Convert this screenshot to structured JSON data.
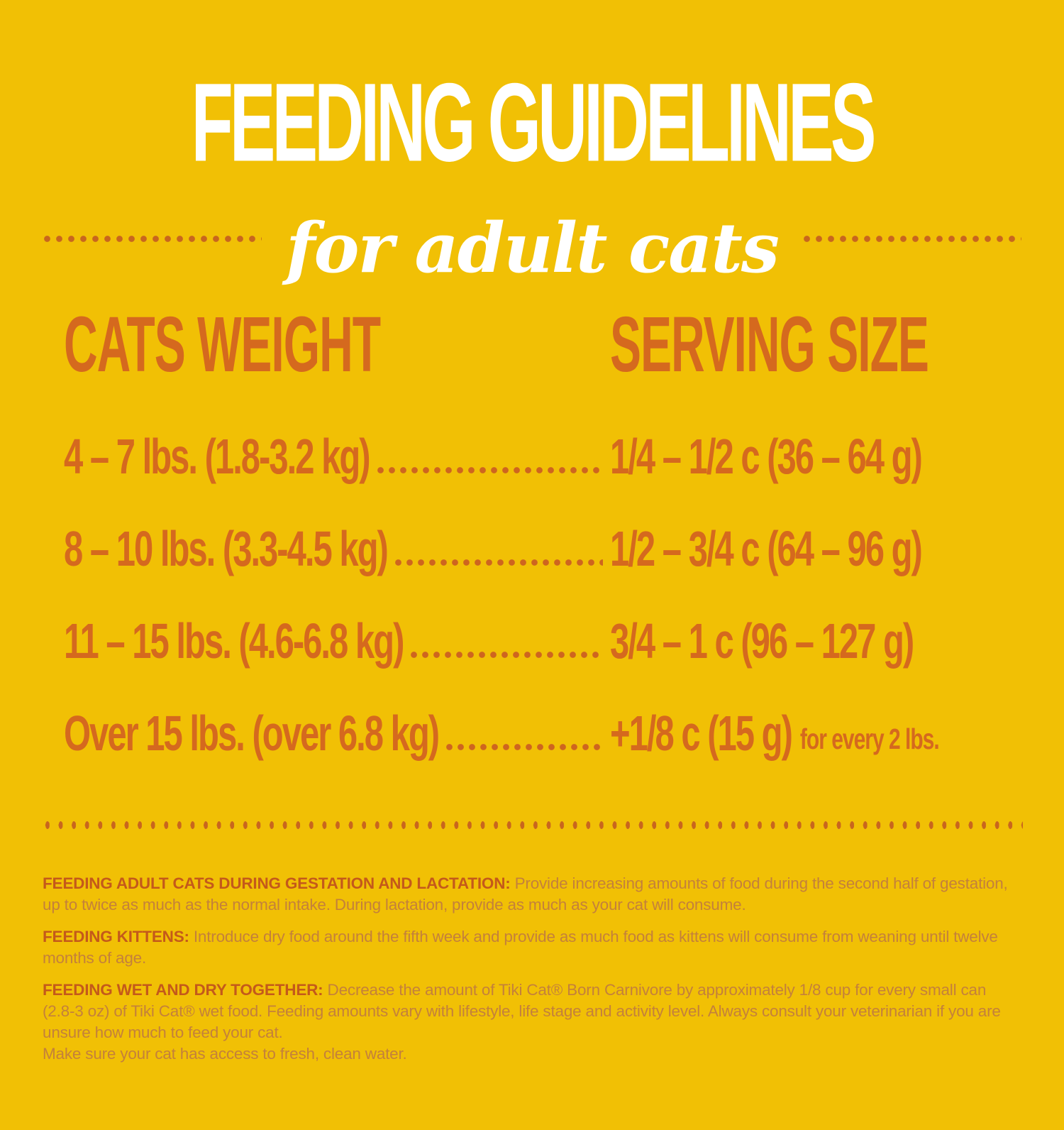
{
  "colors": {
    "background": "#F1C005",
    "title_white": "#FFFFFF",
    "table_orange": "#D5691E",
    "dot_orange": "#C8661E",
    "note_label_orange": "#C4591B",
    "note_body_orange": "#C4803B"
  },
  "header": {
    "title": "FEEDING GUIDELINES",
    "subtitle": "for adult cats"
  },
  "table": {
    "weight_header": "CATS WEIGHT",
    "serving_header": "SERVING SIZE",
    "rows": [
      {
        "weight": "4 – 7 lbs. (1.8-3.2 kg)",
        "serving": "1/4 – 1/2 c (36 – 64 g)",
        "note": ""
      },
      {
        "weight": "8 – 10 lbs. (3.3-4.5 kg)",
        "serving": "1/2 – 3/4 c (64 – 96 g)",
        "note": ""
      },
      {
        "weight": "11 – 15 lbs. (4.6-6.8 kg)",
        "serving": "3/4 – 1 c (96 – 127 g)",
        "note": ""
      },
      {
        "weight": "Over 15 lbs. (over 6.8 kg)",
        "serving": "+1/8 c (15 g)",
        "note": "for every 2 lbs."
      }
    ]
  },
  "notes": [
    {
      "label": "FEEDING ADULT CATS DURING GESTATION AND LACTATION:",
      "text": "Provide increasing amounts of food during the second half of gestation, up to twice as much as the normal intake.  During lactation, provide as much as your cat will consume."
    },
    {
      "label": "FEEDING KITTENS:",
      "text": "Introduce dry food around the fifth week and provide as much food as kittens will consume from weaning until twelve months of age."
    },
    {
      "label": "FEEDING WET AND DRY TOGETHER:",
      "text": "Decrease the amount of Tiki Cat® Born Carnivore by approximately 1/8 cup for every small can (2.8-3 oz) of Tiki Cat® wet food. Feeding amounts vary with lifestyle, life stage and activity level.  Always consult your veterinarian if you are unsure how much to feed your cat.",
      "text2": "Make sure your cat has access to fresh, clean water."
    }
  ]
}
